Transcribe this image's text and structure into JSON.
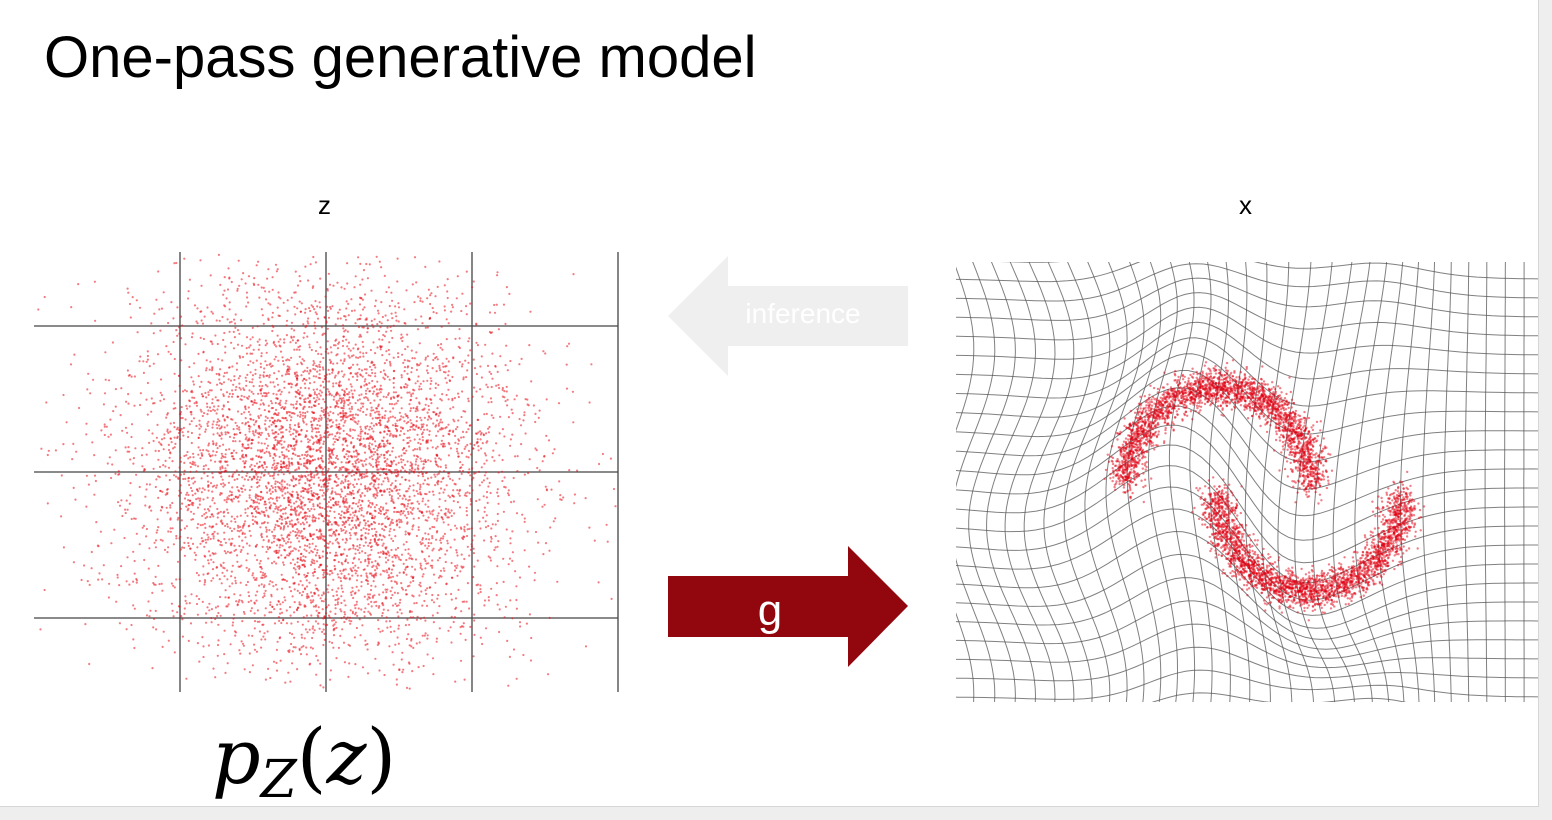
{
  "slide": {
    "title": "One-pass generative model"
  },
  "left_panel": {
    "label": "z",
    "point_color": "#e8101c"
  },
  "right_panel": {
    "label": "x",
    "point_color": "#e00012",
    "grid_color": "#555555"
  },
  "arrows": {
    "inference": {
      "label": "inference",
      "color": "#efefef"
    },
    "generator": {
      "label": "g",
      "color": "#92060e"
    }
  },
  "formula": {
    "base": "p",
    "subscript": "Z",
    "open_paren": "(",
    "argument": "z",
    "close_paren": ")"
  }
}
